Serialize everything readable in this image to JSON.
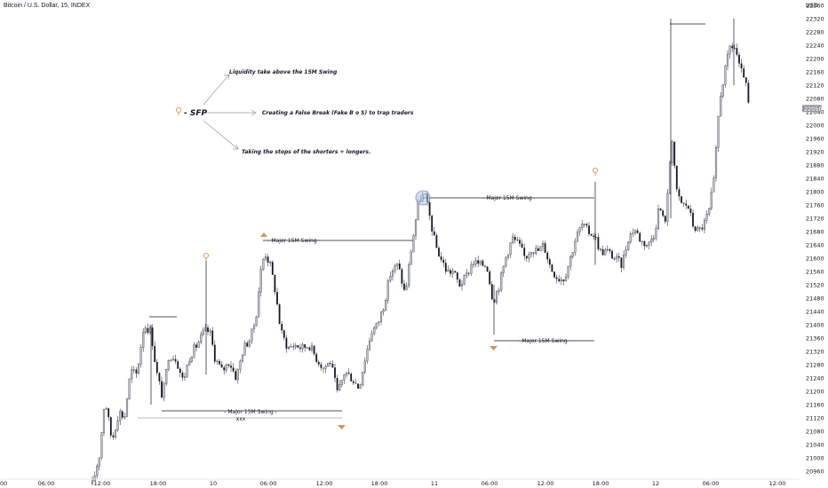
{
  "header": {
    "symbol": "Bitcoin / U.S. Dollar, 15, INDEX"
  },
  "chart_data": {
    "type": "candlestick",
    "ylabel": "USD",
    "ylim": [
      20920,
      22370
    ],
    "y_ticks": [
      20960,
      21000,
      21040,
      21080,
      21120,
      21160,
      21200,
      21240,
      21280,
      21320,
      21360,
      21400,
      21440,
      21480,
      21520,
      21560,
      21600,
      21640,
      21680,
      21720,
      21760,
      21800,
      21840,
      21880,
      21920,
      21960,
      22000,
      22040,
      22080,
      22120,
      22160,
      22200,
      22240,
      22280,
      22320,
      22360
    ],
    "x_ticks": [
      "00",
      "06:00",
      "12:00",
      "18:00",
      "10",
      "06:00",
      "12:00",
      "18:00",
      "11",
      "06:00",
      "12:00",
      "18:00",
      "12",
      "06:00",
      "12:00"
    ],
    "last_price": "22050",
    "candle_color": "#131722",
    "candle_up_color": "#bfc2cc",
    "annotations": {
      "legend_label": "- SFP",
      "points": [
        "Liquidity take above the 15M Swing",
        "Creating a False Break (Fake B o S) to trap traders",
        "Taking the stops of the shorters + longers."
      ],
      "swing_labels": [
        "- Major 15M Swing -",
        "- Major 15M Swing -",
        "- Major 15M Swing -",
        "- Major 15M Swing -"
      ],
      "xxx_label": "xxx",
      "accent_color": "#c8995e"
    }
  }
}
